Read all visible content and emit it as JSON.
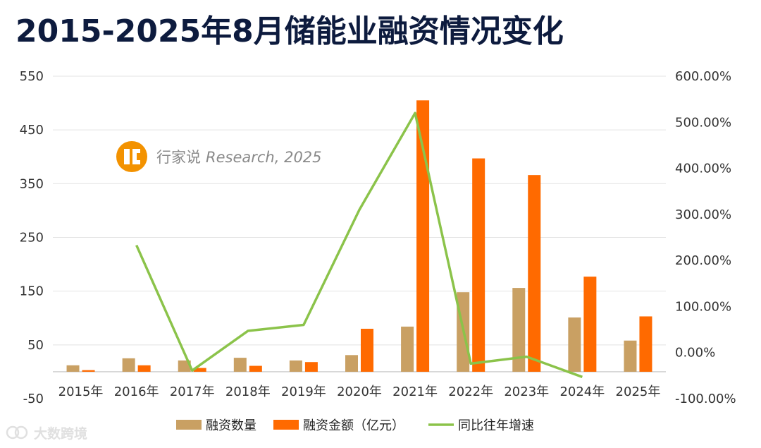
{
  "title": "2015-2025年8月储能业融资情况变化",
  "watermark": {
    "brand": "行家说",
    "suffix": "Research, 2025",
    "logo_color": "#f39200"
  },
  "footer": {
    "text": "大数跨境"
  },
  "chart_data": {
    "type": "bar",
    "categories": [
      "2015年",
      "2016年",
      "2017年",
      "2018年",
      "2019年",
      "2020年",
      "2021年",
      "2022年",
      "2023年",
      "2024年",
      "2025年"
    ],
    "series": [
      {
        "name": "融资数量",
        "type": "bar",
        "axis": "left",
        "color": "#c9a063",
        "values": [
          12,
          25,
          21,
          26,
          21,
          31,
          84,
          148,
          156,
          101,
          58
        ]
      },
      {
        "name": "融资金额（亿元）",
        "type": "bar",
        "axis": "left",
        "color": "#ff6a00",
        "values": [
          3,
          12,
          7,
          11,
          18,
          80,
          505,
          397,
          366,
          177,
          103
        ]
      },
      {
        "name": "同比往年增速",
        "type": "line",
        "axis": "right",
        "color": "#8bc34a",
        "values": [
          null,
          233,
          -39,
          47,
          60,
          310,
          520,
          -24,
          -9,
          -53,
          null
        ]
      }
    ],
    "y_left": {
      "min": -50,
      "max": 550,
      "ticks": [
        "-50",
        "50",
        "150",
        "250",
        "350",
        "450",
        "550"
      ]
    },
    "y_right": {
      "min": -100,
      "max": 600,
      "ticks": [
        "-100.00%",
        "0.00%",
        "100.00%",
        "200.00%",
        "300.00%",
        "400.00%",
        "500.00%",
        "600.00%"
      ]
    },
    "grid": true,
    "legend_position": "bottom"
  }
}
